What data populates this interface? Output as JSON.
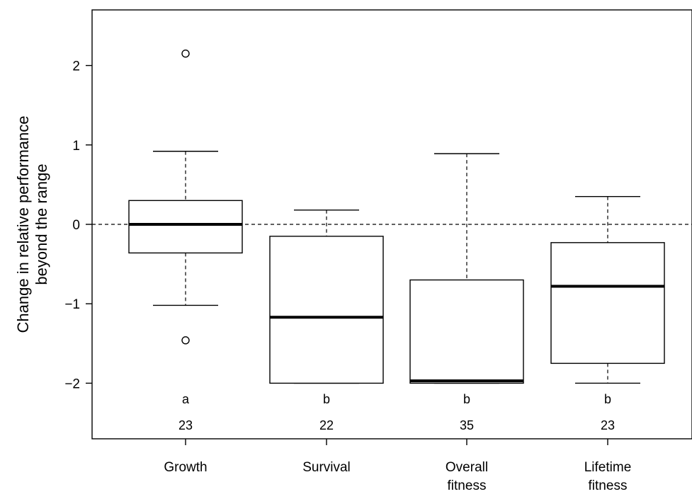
{
  "chart_data": {
    "type": "boxplot",
    "title": "",
    "xlabel": "",
    "ylabel_lines": [
      "Change in relative performance",
      "beyond the range"
    ],
    "ylim": [
      -2.7,
      2.7
    ],
    "yticks": [
      -2,
      -1,
      0,
      1,
      2
    ],
    "ytick_labels": [
      "−2",
      "−1",
      "0",
      "1",
      "2"
    ],
    "reference_line_y": 0,
    "grid": false,
    "categories": [
      [
        "Growth"
      ],
      [
        "Survival"
      ],
      [
        "Overall",
        "fitness"
      ],
      [
        "Lifetime",
        "fitness"
      ]
    ],
    "boxes": [
      {
        "whisker_low": -1.02,
        "q1": -0.36,
        "median": 0.0,
        "q3": 0.3,
        "whisker_high": 0.92,
        "outliers": [
          2.15,
          -1.46
        ]
      },
      {
        "whisker_low": -2.0,
        "q1": -2.0,
        "median": -1.17,
        "q3": -0.15,
        "whisker_high": 0.18,
        "outliers": []
      },
      {
        "whisker_low": -2.0,
        "q1": -2.0,
        "median": -1.97,
        "q3": -0.7,
        "whisker_high": 0.89,
        "outliers": []
      },
      {
        "whisker_low": -2.0,
        "q1": -1.75,
        "median": -0.78,
        "q3": -0.23,
        "whisker_high": 0.35,
        "outliers": []
      }
    ],
    "group_letters": [
      "a",
      "b",
      "b",
      "b"
    ],
    "sample_sizes": [
      "23",
      "22",
      "35",
      "23"
    ]
  }
}
